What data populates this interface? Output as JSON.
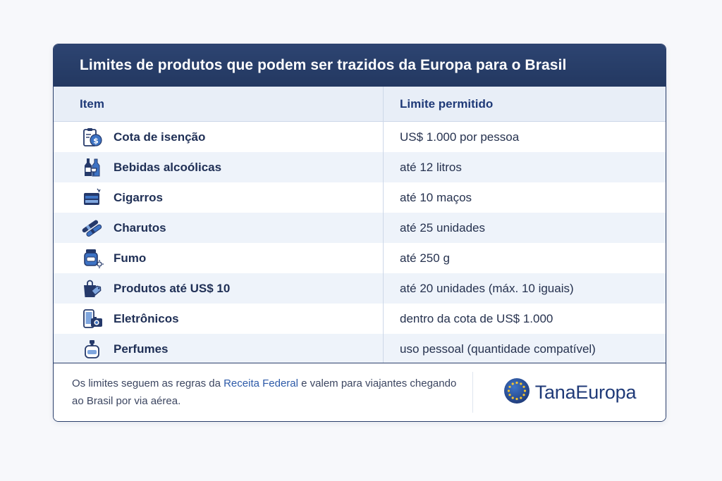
{
  "header": {
    "title": "Limites de produtos que podem ser trazidos da Europa para o Brasil"
  },
  "table": {
    "columns": [
      "Item",
      "Limite permitido"
    ],
    "rows": [
      {
        "icon": "duty-free-receipt-icon",
        "item": "Cota de isenção",
        "limit": "US$ 1.000 por pessoa"
      },
      {
        "icon": "bottles-icon",
        "item": "Bebidas alcoólicas",
        "limit": "até 12 litros"
      },
      {
        "icon": "cigarette-pack-icon",
        "item": "Cigarros",
        "limit": "até 10 maços"
      },
      {
        "icon": "cigars-icon",
        "item": "Charutos",
        "limit": "até 25 unidades"
      },
      {
        "icon": "tobacco-jar-icon",
        "item": "Fumo",
        "limit": "até 250 g"
      },
      {
        "icon": "shopping-bag-tag-icon",
        "item": "Produtos até US$ 10",
        "limit": "até 20 unidades (máx. 10 iguais)"
      },
      {
        "icon": "phone-camera-icon",
        "item": "Eletrônicos",
        "limit": "dentro da cota de US$ 1.000"
      },
      {
        "icon": "perfume-bottle-icon",
        "item": "Perfumes",
        "limit": "uso pessoal (quantidade compatível)"
      }
    ]
  },
  "footer": {
    "note_before": "Os limites seguem as regras da ",
    "note_link": "Receita Federal",
    "note_after": " e valem para viajantes chegando ao Brasil por via aérea.",
    "brand": "TanaEuropa",
    "brand_icon": "eu-flag-globe-icon"
  },
  "colors": {
    "header_bg": "#233861",
    "accent": "#1f3a78",
    "row_alt": "#eef3fa",
    "link": "#2d5aa8"
  }
}
